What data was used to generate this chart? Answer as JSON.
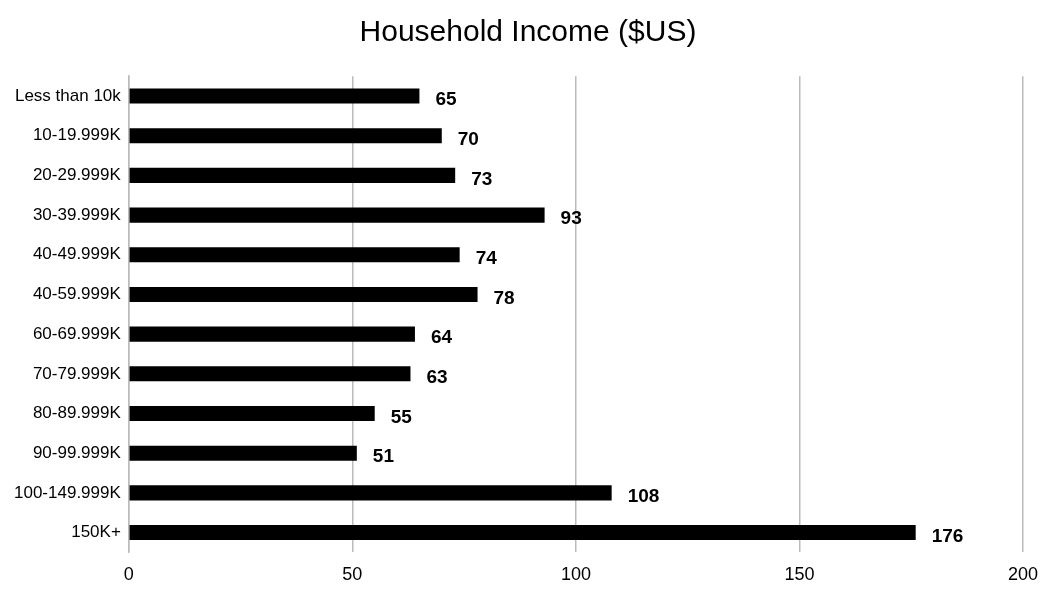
{
  "chart_data": {
    "type": "bar",
    "orientation": "horizontal",
    "title": "Household Income ($US)",
    "categories": [
      "Less than 10k",
      "10-19.999K",
      "20-29.999K",
      "30-39.999K",
      "40-49.999K",
      "40-59.999K",
      "60-69.999K",
      "70-79.999K",
      "80-89.999K",
      "90-99.999K",
      "100-149.999K",
      "150K+"
    ],
    "values": [
      65,
      70,
      73,
      93,
      74,
      78,
      64,
      63,
      55,
      51,
      108,
      176
    ],
    "color": "#000000",
    "xlim": [
      0,
      200
    ],
    "xticks": [
      0,
      50,
      100,
      150,
      200
    ],
    "grid": "x",
    "legend": false,
    "data_labels": true
  }
}
